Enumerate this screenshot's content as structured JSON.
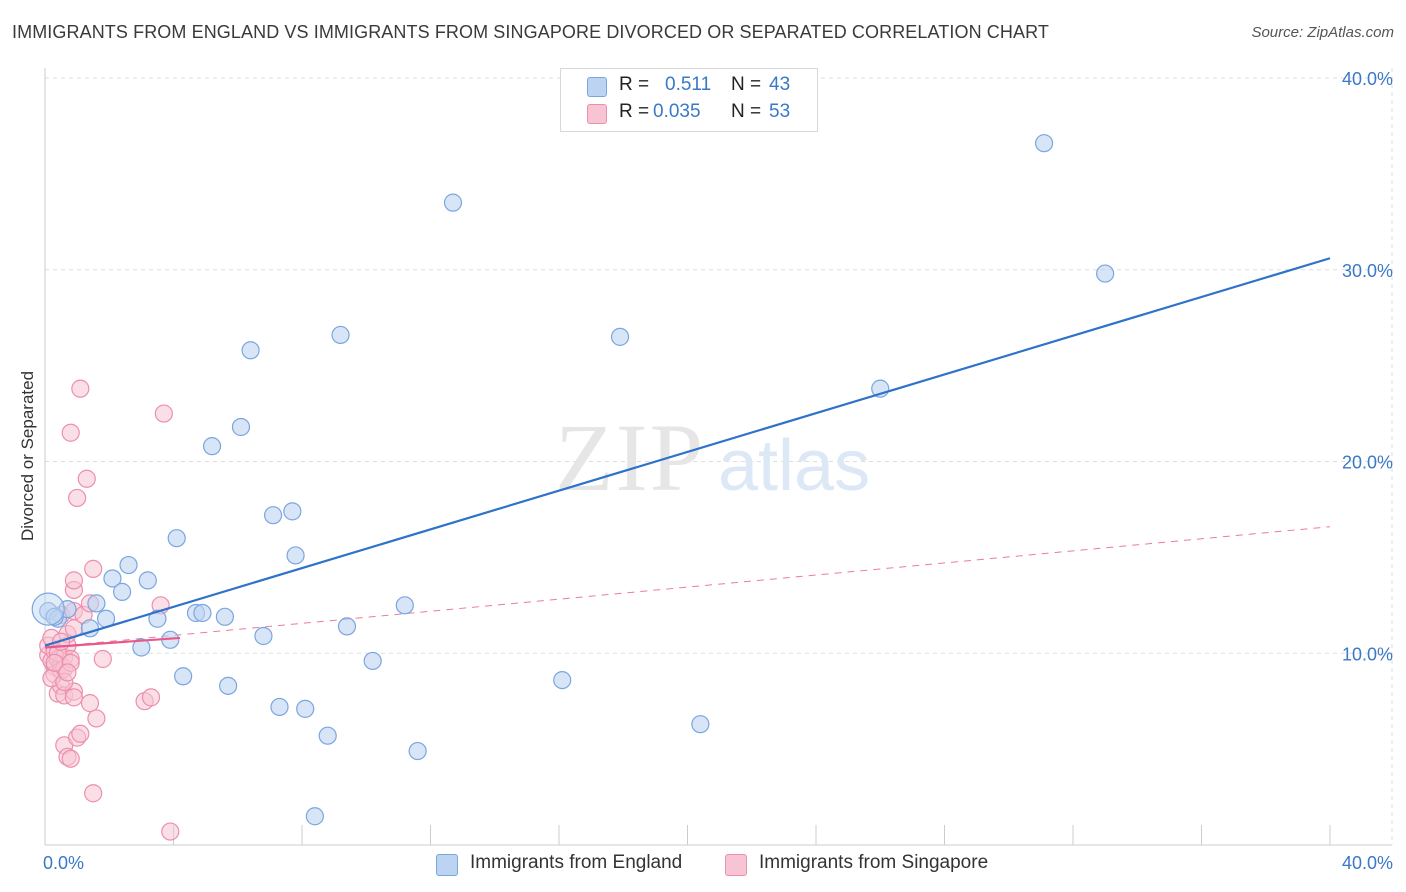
{
  "title": "IMMIGRANTS FROM ENGLAND VS IMMIGRANTS FROM SINGAPORE DIVORCED OR SEPARATED CORRELATION CHART",
  "source": "Source: ZipAtlas.com",
  "watermark": {
    "zip": "ZIP",
    "atlas": "atlas"
  },
  "legend": {
    "england": {
      "r_label": "R =",
      "r_value": "0.511",
      "n_label": "N =",
      "n_value": "43"
    },
    "singapore": {
      "r_label": "R =",
      "r_value": "0.035",
      "n_label": "N =",
      "n_value": "53"
    }
  },
  "colors": {
    "england_fill": "#bcd4f2",
    "england_stroke": "#7aa6e0",
    "england_line": "#2f72c9",
    "singapore_fill": "#f7c4d4",
    "singapore_stroke": "#ec8fae",
    "singapore_line": "#e8588a",
    "axis_label": "#3a78c9",
    "grid": "#dddddd"
  },
  "chart_data": {
    "type": "scatter",
    "title": "IMMIGRANTS FROM ENGLAND VS IMMIGRANTS FROM SINGAPORE DIVORCED OR SEPARATED CORRELATION CHART",
    "xlabel": "",
    "ylabel": "Divorced or Separated",
    "xlim": [
      0,
      40
    ],
    "ylim": [
      0,
      40
    ],
    "x_tick_labels": [
      "0.0%",
      "40.0%"
    ],
    "y_ticks": [
      10,
      20,
      30,
      40
    ],
    "y_tick_labels": [
      "10.0%",
      "20.0%",
      "30.0%",
      "40.0%"
    ],
    "grid": true,
    "legend_position": "top-center",
    "series": [
      {
        "name": "Immigrants from England",
        "points": [
          [
            0.1,
            12.2
          ],
          [
            0.4,
            11.8
          ],
          [
            0.7,
            12.3
          ],
          [
            1.4,
            11.3
          ],
          [
            1.6,
            12.6
          ],
          [
            1.9,
            11.8
          ],
          [
            2.1,
            13.9
          ],
          [
            2.4,
            13.2
          ],
          [
            2.6,
            14.6
          ],
          [
            3.0,
            10.3
          ],
          [
            3.2,
            13.8
          ],
          [
            3.5,
            11.8
          ],
          [
            3.9,
            10.7
          ],
          [
            4.1,
            16.0
          ],
          [
            4.3,
            8.8
          ],
          [
            4.7,
            12.1
          ],
          [
            4.9,
            12.1
          ],
          [
            5.2,
            20.8
          ],
          [
            5.6,
            11.9
          ],
          [
            5.7,
            8.3
          ],
          [
            6.1,
            21.8
          ],
          [
            6.4,
            25.8
          ],
          [
            6.8,
            10.9
          ],
          [
            7.1,
            17.2
          ],
          [
            7.3,
            7.2
          ],
          [
            7.7,
            17.4
          ],
          [
            7.8,
            15.1
          ],
          [
            8.1,
            7.1
          ],
          [
            8.4,
            1.5
          ],
          [
            8.8,
            5.7
          ],
          [
            9.2,
            26.6
          ],
          [
            9.4,
            11.4
          ],
          [
            10.2,
            9.6
          ],
          [
            11.2,
            12.5
          ],
          [
            11.6,
            4.9
          ],
          [
            12.7,
            33.5
          ],
          [
            16.1,
            8.6
          ],
          [
            17.9,
            26.5
          ],
          [
            20.4,
            6.3
          ],
          [
            26.0,
            23.8
          ],
          [
            31.1,
            36.6
          ],
          [
            33.0,
            29.8
          ],
          [
            0.3,
            11.9
          ]
        ],
        "trend": {
          "x": [
            0,
            40
          ],
          "y": [
            10.4,
            30.6
          ]
        }
      },
      {
        "name": "Immigrants from Singapore",
        "points": [
          [
            0.1,
            9.9
          ],
          [
            0.1,
            10.4
          ],
          [
            0.2,
            9.6
          ],
          [
            0.2,
            10.8
          ],
          [
            0.3,
            9.3
          ],
          [
            0.3,
            8.9
          ],
          [
            0.3,
            10.1
          ],
          [
            0.4,
            9.7
          ],
          [
            0.4,
            7.9
          ],
          [
            0.5,
            9.4
          ],
          [
            0.5,
            9.1
          ],
          [
            0.5,
            8.3
          ],
          [
            0.5,
            12.0
          ],
          [
            0.6,
            9.8
          ],
          [
            0.6,
            9.2
          ],
          [
            0.6,
            7.8
          ],
          [
            0.6,
            5.2
          ],
          [
            0.7,
            10.4
          ],
          [
            0.7,
            11.0
          ],
          [
            0.7,
            4.6
          ],
          [
            0.8,
            9.7
          ],
          [
            0.8,
            21.5
          ],
          [
            0.8,
            4.5
          ],
          [
            0.9,
            13.3
          ],
          [
            0.9,
            13.8
          ],
          [
            0.9,
            12.2
          ],
          [
            0.9,
            11.3
          ],
          [
            0.9,
            8.0
          ],
          [
            0.9,
            7.7
          ],
          [
            1.0,
            18.1
          ],
          [
            1.0,
            5.6
          ],
          [
            1.1,
            23.8
          ],
          [
            1.1,
            5.8
          ],
          [
            1.2,
            12.0
          ],
          [
            1.3,
            19.1
          ],
          [
            1.4,
            12.6
          ],
          [
            1.4,
            7.4
          ],
          [
            1.5,
            14.4
          ],
          [
            1.5,
            2.7
          ],
          [
            1.6,
            6.6
          ],
          [
            1.8,
            9.7
          ],
          [
            3.1,
            7.5
          ],
          [
            3.3,
            7.7
          ],
          [
            3.6,
            12.5
          ],
          [
            3.7,
            22.5
          ],
          [
            3.9,
            0.7
          ],
          [
            0.2,
            8.7
          ],
          [
            0.4,
            10.0
          ],
          [
            0.3,
            9.5
          ],
          [
            0.6,
            8.5
          ],
          [
            0.8,
            9.5
          ],
          [
            0.5,
            10.6
          ],
          [
            0.7,
            9.0
          ]
        ],
        "trend_solid": {
          "x": [
            0,
            4.2
          ],
          "y": [
            10.3,
            10.8
          ]
        },
        "trend_dashed": {
          "x": [
            0,
            40
          ],
          "y": [
            10.3,
            16.6
          ]
        }
      }
    ]
  },
  "bottom_legend": {
    "england": "Immigrants from England",
    "singapore": "Immigrants from Singapore"
  }
}
